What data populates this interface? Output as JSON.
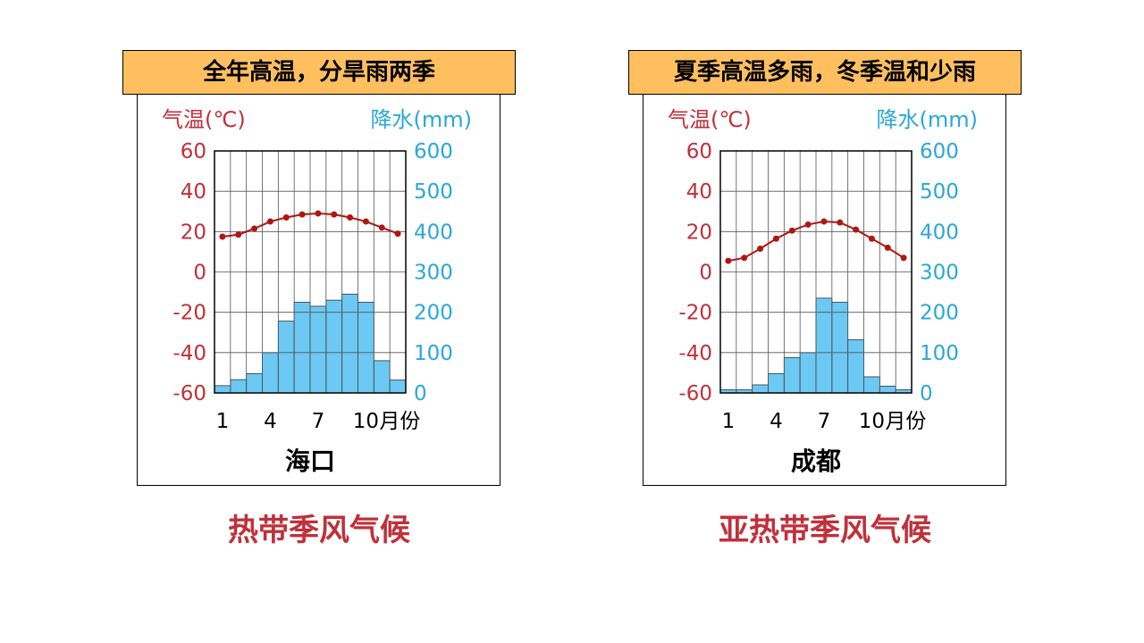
{
  "chart_data": [
    {
      "type": "bar+line",
      "title": "全年高温，分旱雨两季",
      "city": "海口",
      "climate_type": "热带季风气候",
      "temp_axis_label": "气温(℃)",
      "precip_axis_label": "降水(mm)",
      "temp_ylim": [
        -60,
        60
      ],
      "temp_ticks": [
        "60",
        "40",
        "20",
        "0",
        "-20",
        "-40",
        "-60"
      ],
      "precip_ylim": [
        0,
        600
      ],
      "precip_ticks": [
        "600",
        "500",
        "400",
        "300",
        "200",
        "100",
        "0"
      ],
      "x_tick_labels": [
        "1",
        "4",
        "7",
        "10"
      ],
      "x_unit": "月份",
      "months": [
        1,
        2,
        3,
        4,
        5,
        6,
        7,
        8,
        9,
        10,
        11,
        12
      ],
      "temperature": [
        17.5,
        18.5,
        21.5,
        25,
        27,
        28.5,
        29,
        28.5,
        27,
        25,
        22,
        19
      ],
      "precipitation": [
        18,
        33,
        48,
        100,
        178,
        225,
        215,
        230,
        245,
        225,
        80,
        32
      ],
      "colors": {
        "temp": "#C0303A",
        "precip": "#29A8D6",
        "bar_fill": "#6CC9F3",
        "line": "#B01515"
      }
    },
    {
      "type": "bar+line",
      "title": "夏季高温多雨，冬季温和少雨",
      "city": "成都",
      "climate_type": "亚热带季风气候",
      "temp_axis_label": "气温(℃)",
      "precip_axis_label": "降水(mm)",
      "temp_ylim": [
        -60,
        60
      ],
      "temp_ticks": [
        "60",
        "40",
        "20",
        "0",
        "-20",
        "-40",
        "-60"
      ],
      "precip_ylim": [
        0,
        600
      ],
      "precip_ticks": [
        "600",
        "500",
        "400",
        "300",
        "200",
        "100",
        "0"
      ],
      "x_tick_labels": [
        "1",
        "4",
        "7",
        "10"
      ],
      "x_unit": "月份",
      "months": [
        1,
        2,
        3,
        4,
        5,
        6,
        7,
        8,
        9,
        10,
        11,
        12
      ],
      "temperature": [
        5.5,
        7,
        11.5,
        16.5,
        20.5,
        23.5,
        25,
        24.5,
        21,
        16.5,
        12,
        7
      ],
      "precipitation": [
        8,
        8,
        20,
        48,
        88,
        100,
        235,
        225,
        132,
        40,
        17,
        8
      ],
      "colors": {
        "temp": "#C0303A",
        "precip": "#29A8D6",
        "bar_fill": "#6CC9F3",
        "line": "#B01515"
      }
    }
  ]
}
